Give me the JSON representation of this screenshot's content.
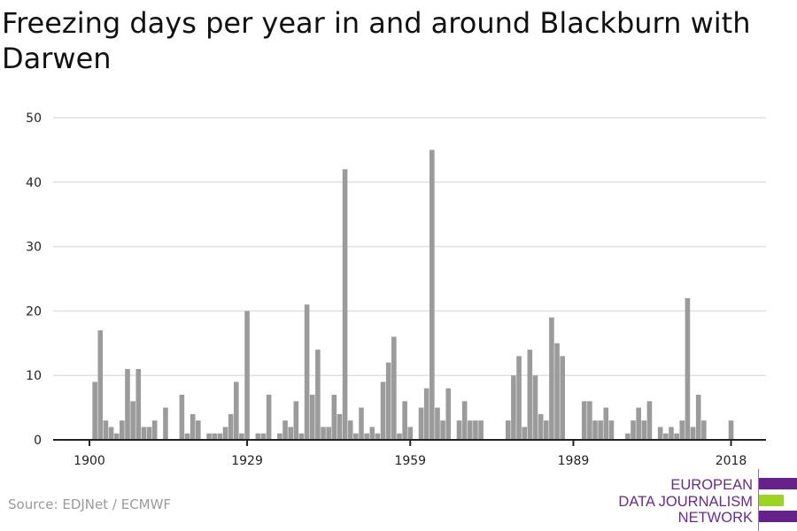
{
  "chart_data": {
    "type": "bar",
    "title": "Freezing days per year in and around Blackburn with Darwen",
    "xlabel": "",
    "ylabel": "",
    "ylim": [
      0,
      50
    ],
    "yticks": [
      0,
      10,
      20,
      30,
      40,
      50
    ],
    "xticks": [
      1900,
      1929,
      1959,
      1989,
      2018
    ],
    "grid": true,
    "bar_color": "#9b9b9b",
    "x_start": 1901,
    "values": [
      9,
      17,
      3,
      2,
      1,
      3,
      11,
      6,
      11,
      2,
      2,
      3,
      0,
      5,
      0,
      0,
      7,
      1,
      4,
      3,
      0,
      1,
      1,
      1,
      2,
      4,
      9,
      1,
      20,
      0,
      1,
      1,
      7,
      0,
      1,
      3,
      2,
      6,
      1,
      21,
      7,
      14,
      2,
      2,
      7,
      4,
      42,
      3,
      1,
      5,
      1,
      2,
      1,
      9,
      12,
      16,
      1,
      6,
      2,
      0,
      5,
      8,
      45,
      5,
      3,
      8,
      0,
      3,
      6,
      3,
      3,
      3,
      0,
      0,
      0,
      0,
      3,
      10,
      13,
      2,
      14,
      10,
      4,
      3,
      19,
      15,
      13,
      0,
      0,
      0,
      6,
      6,
      3,
      3,
      5,
      3,
      0,
      0,
      1,
      3,
      5,
      3,
      6,
      0,
      2,
      1,
      2,
      1,
      3,
      22,
      2,
      7,
      3,
      0,
      0,
      0,
      0,
      3
    ]
  },
  "source": "Source: EDJNet / ECMWF",
  "logo": {
    "lines": [
      "EUROPEAN",
      "DATA JOURNALISM",
      "NETWORK"
    ],
    "colors": {
      "purple": "#66228a",
      "green": "#9ed31f"
    }
  }
}
